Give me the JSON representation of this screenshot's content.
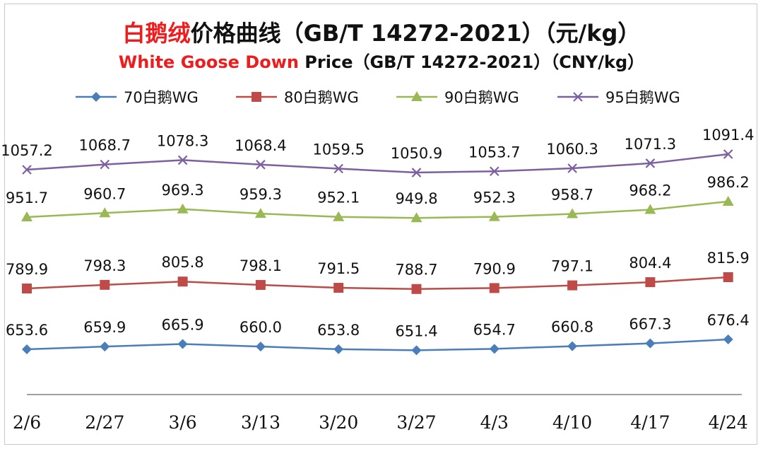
{
  "header": {
    "title_cn_red": "白鹅绒",
    "title_cn_rest": "价格曲线（GB/T 14272-2021）（元/kg）",
    "title_en_red": "White Goose Down",
    "title_en_rest": " Price（GB/T 14272-2021）（CNY/kg）"
  },
  "chart_data": {
    "type": "line",
    "categories": [
      "2/6",
      "2/27",
      "3/6",
      "3/13",
      "3/20",
      "3/27",
      "4/3",
      "4/10",
      "4/17",
      "4/24"
    ],
    "series": [
      {
        "name": "70白鹅WG",
        "color": "#4a7ebb",
        "marker": "diamond",
        "values": [
          653.6,
          659.9,
          665.9,
          660.0,
          653.8,
          651.4,
          654.7,
          660.8,
          667.3,
          676.4
        ],
        "labels": [
          "653.6",
          "659.9",
          "665.9",
          "660.0",
          "653.8",
          "651.4",
          "654.7",
          "660.8",
          "667.3",
          "676.4"
        ]
      },
      {
        "name": "80白鹅WG",
        "color": "#be4b48",
        "marker": "square",
        "values": [
          789.9,
          798.3,
          805.8,
          798.1,
          791.5,
          788.7,
          790.9,
          797.1,
          804.4,
          815.9
        ],
        "labels": [
          "789.9",
          "798.3",
          "805.8",
          "798.1",
          "791.5",
          "788.7",
          "790.9",
          "797.1",
          "804.4",
          "815.9"
        ]
      },
      {
        "name": "90白鹅WG",
        "color": "#98b954",
        "marker": "triangle",
        "values": [
          951.7,
          960.7,
          969.3,
          959.3,
          952.1,
          949.8,
          952.3,
          958.7,
          968.2,
          986.2
        ],
        "labels": [
          "951.7",
          "960.7",
          "969.3",
          "959.3",
          "952.1",
          "949.8",
          "952.3",
          "958.7",
          "968.2",
          "986.2"
        ]
      },
      {
        "name": "95白鹅WG",
        "color": "#7d60a0",
        "marker": "x",
        "values": [
          1057.2,
          1068.7,
          1078.3,
          1068.4,
          1059.5,
          1050.9,
          1053.7,
          1060.3,
          1071.3,
          1091.4
        ],
        "labels": [
          "1057.2",
          "1068.7",
          "1078.3",
          "1068.4",
          "1059.5",
          "1050.9",
          "1053.7",
          "1060.3",
          "1071.3",
          "1091.4"
        ]
      }
    ],
    "legend_position": "top",
    "y_axis_visible": false,
    "grid": false
  }
}
